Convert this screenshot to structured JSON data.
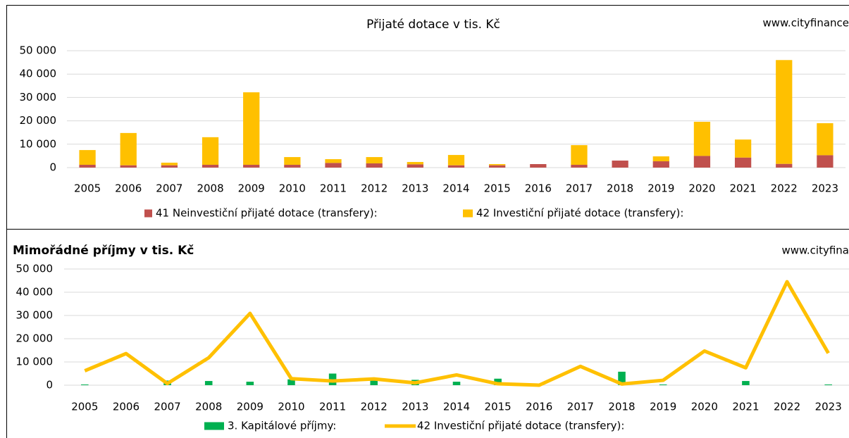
{
  "chart_data": [
    {
      "type": "bar",
      "stacked": true,
      "title": "Přijaté dotace v tis. Kč",
      "watermark": "www.cityfinance",
      "categories": [
        "2005",
        "2006",
        "2007",
        "2008",
        "2009",
        "2010",
        "2011",
        "2012",
        "2013",
        "2014",
        "2015",
        "2016",
        "2017",
        "2018",
        "2019",
        "2020",
        "2021",
        "2022",
        "2023"
      ],
      "series": [
        {
          "name": "41 Neinvestiční přijaté dotace (transfery):",
          "color": "#c0504d",
          "type": "bar",
          "values": [
            1200,
            1000,
            1000,
            1200,
            1200,
            1200,
            2000,
            1800,
            1400,
            1000,
            1000,
            1500,
            1200,
            3000,
            2700,
            5000,
            4300,
            1600,
            5300
          ]
        },
        {
          "name": "42 Investiční přijaté dotace (transfery):",
          "color": "#ffc000",
          "type": "bar",
          "values": [
            6300,
            13800,
            1100,
            11800,
            31000,
            3300,
            1600,
            2700,
            1000,
            4400,
            500,
            0,
            8400,
            0,
            2100,
            14600,
            7700,
            44400,
            13700
          ]
        }
      ],
      "ylim": [
        0,
        50000
      ],
      "yticks": [
        0,
        {
          "value": 10000,
          "label": "10 000"
        },
        {
          "value": 20000,
          "label": "20 000"
        },
        {
          "value": 30000,
          "label": "30 000"
        },
        {
          "value": 40000,
          "label": "40 000"
        },
        {
          "value": 50000,
          "label": "50 000"
        }
      ],
      "grid": true
    },
    {
      "type": "combo",
      "title": "Mimořádné příjmy v tis. Kč",
      "watermark": "www.cityfina",
      "categories": [
        "2005",
        "2006",
        "2007",
        "2008",
        "2009",
        "2010",
        "2011",
        "2012",
        "2013",
        "2014",
        "2015",
        "2016",
        "2017",
        "2018",
        "2019",
        "2020",
        "2021",
        "2022",
        "2023"
      ],
      "series": [
        {
          "name": "3. Kapitálové příjmy:",
          "color": "#00b050",
          "type": "bar",
          "values": [
            300,
            0,
            2000,
            1800,
            1500,
            2500,
            5000,
            2000,
            2300,
            1500,
            2800,
            0,
            0,
            5800,
            300,
            0,
            1800,
            0,
            300
          ]
        },
        {
          "name": "42 Investiční přijaté dotace (transfery):",
          "color": "#ffc000",
          "type": "line",
          "values": [
            6200,
            13600,
            700,
            11800,
            30900,
            2800,
            1800,
            2700,
            1000,
            4400,
            600,
            0,
            8100,
            500,
            2100,
            14700,
            7500,
            44500,
            13800
          ]
        }
      ],
      "ylim": [
        0,
        50000
      ],
      "yticks": [
        0,
        {
          "value": 10000,
          "label": "10 000"
        },
        {
          "value": 20000,
          "label": "20 000"
        },
        {
          "value": 30000,
          "label": "30 000"
        },
        {
          "value": 40000,
          "label": "40 000"
        },
        {
          "value": 50000,
          "label": "50 000"
        }
      ],
      "grid": true
    }
  ]
}
